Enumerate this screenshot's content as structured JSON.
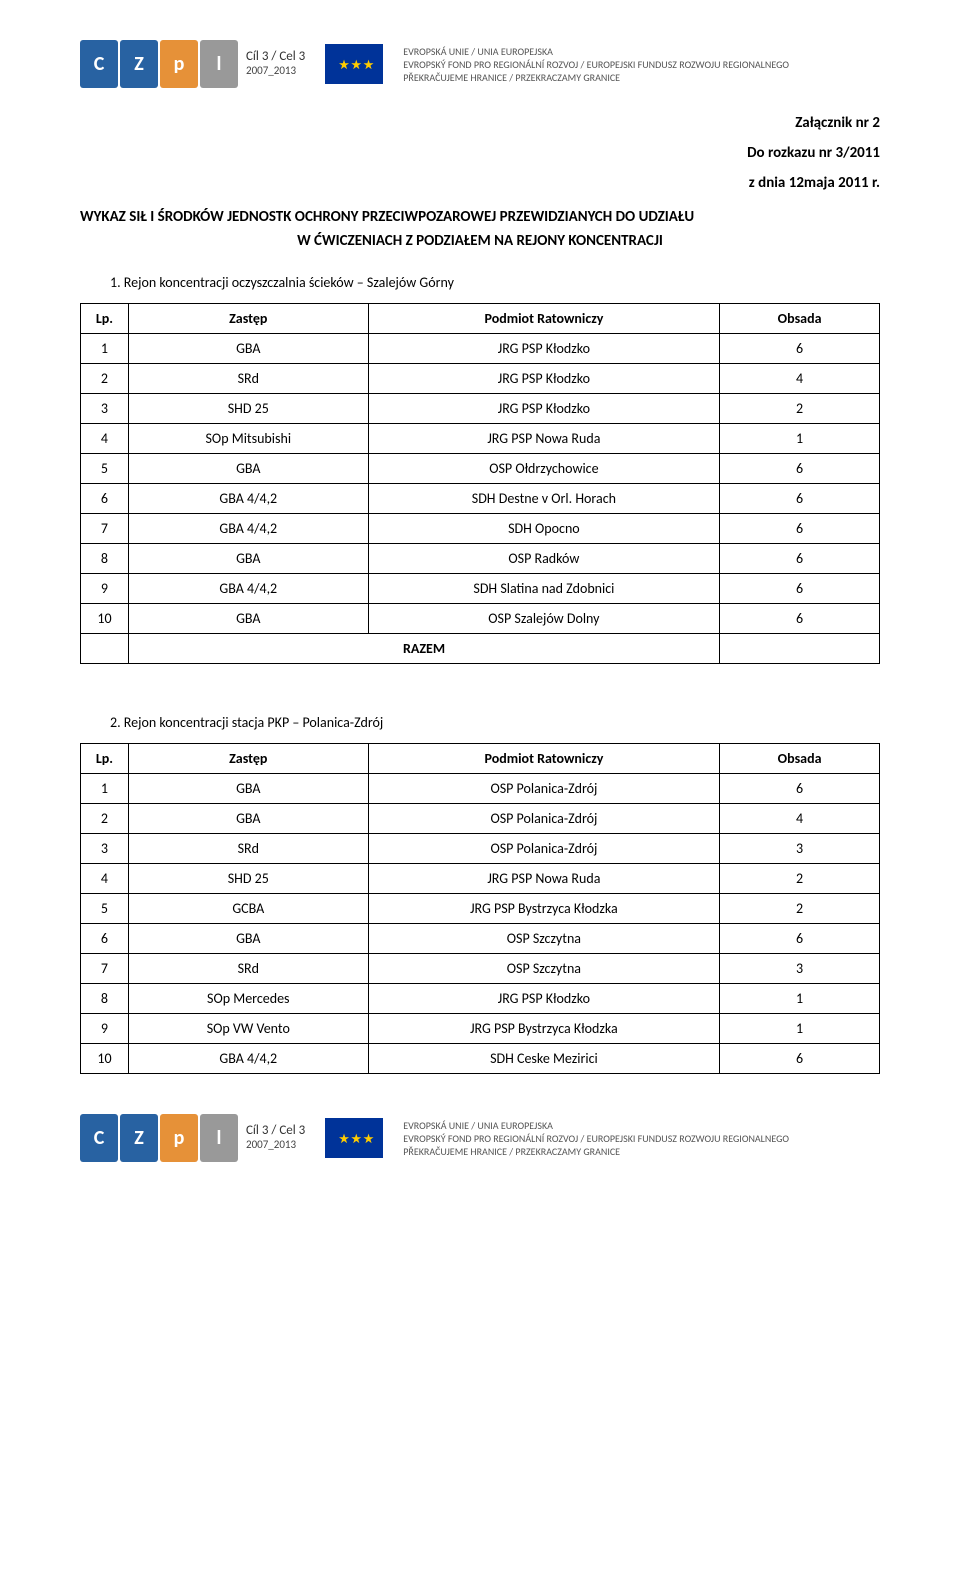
{
  "banner": {
    "logo_program": "Cíl 3 / Cel 3",
    "logo_years": "2007_2013",
    "eu_line1": "EVROPSKÁ UNIE / UNIA EUROPEJSKA",
    "eu_line2": "EVROPSKÝ FOND PRO REGIONÁLNÍ ROZVOJ / EUROPEJSKI FUNDUSZ ROZWOJU REGIONALNEGO",
    "eu_line3": "PŘEKRAČUJEME HRANICE / PRZEKRACZAMY GRANICE"
  },
  "meta": {
    "annex": "Załącznik nr 2",
    "order": "Do rozkazu nr 3/2011",
    "date": "z dnia 12maja 2011 r."
  },
  "title": {
    "line1": "WYKAZ SIŁ I ŚRODKÓW JEDNOSTK OCHRONY PRZECIWPOZAROWEJ PRZEWIDZIANYCH DO UDZIAŁU",
    "line2": "W ĆWICZENIACH Z PODZIAŁEM NA REJONY KONCENTRACJI"
  },
  "table_headers": {
    "lp": "Lp.",
    "zastep": "Zastęp",
    "podmiot": "Podmiot Ratowniczy",
    "obsada": "Obsada"
  },
  "razem_label": "RAZEM",
  "section1": {
    "heading": "1.   Rejon koncentracji oczyszczalnia ścieków – Szalejów Górny",
    "rows": [
      {
        "lp": "1",
        "z": "GBA",
        "p": "JRG PSP Kłodzko",
        "o": "6"
      },
      {
        "lp": "2",
        "z": "SRd",
        "p": "JRG PSP Kłodzko",
        "o": "4"
      },
      {
        "lp": "3",
        "z": "SHD 25",
        "p": "JRG PSP Kłodzko",
        "o": "2"
      },
      {
        "lp": "4",
        "z": "SOp Mitsubishi",
        "p": "JRG PSP Nowa Ruda",
        "o": "1"
      },
      {
        "lp": "5",
        "z": "GBA",
        "p": "OSP Ołdrzychowice",
        "o": "6"
      },
      {
        "lp": "6",
        "z": "GBA 4/4,2",
        "p": "SDH Destne v Orl. Horach",
        "o": "6"
      },
      {
        "lp": "7",
        "z": "GBA 4/4,2",
        "p": "SDH Opocno",
        "o": "6"
      },
      {
        "lp": "8",
        "z": "GBA",
        "p": "OSP Radków",
        "o": "6"
      },
      {
        "lp": "9",
        "z": "GBA 4/4,2",
        "p": "SDH Slatina nad Zdobnici",
        "o": "6"
      },
      {
        "lp": "10",
        "z": "GBA",
        "p": "OSP Szalejów Dolny",
        "o": "6"
      }
    ]
  },
  "section2": {
    "heading": "2.   Rejon koncentracji stacja PKP – Polanica-Zdrój",
    "rows": [
      {
        "lp": "1",
        "z": "GBA",
        "p": "OSP Polanica-Zdrój",
        "o": "6"
      },
      {
        "lp": "2",
        "z": "GBA",
        "p": "OSP Polanica-Zdrój",
        "o": "4"
      },
      {
        "lp": "3",
        "z": "SRd",
        "p": "OSP Polanica-Zdrój",
        "o": "3"
      },
      {
        "lp": "4",
        "z": "SHD 25",
        "p": "JRG PSP Nowa Ruda",
        "o": "2"
      },
      {
        "lp": "5",
        "z": "GCBA",
        "p": "JRG PSP Bystrzyca Kłodzka",
        "o": "2"
      },
      {
        "lp": "6",
        "z": "GBA",
        "p": "OSP Szczytna",
        "o": "6"
      },
      {
        "lp": "7",
        "z": "SRd",
        "p": "OSP Szczytna",
        "o": "3"
      },
      {
        "lp": "8",
        "z": "SOp Mercedes",
        "p": "JRG PSP Kłodzko",
        "o": "1"
      },
      {
        "lp": "9",
        "z": "SOp VW Vento",
        "p": "JRG PSP Bystrzyca Kłodzka",
        "o": "1"
      },
      {
        "lp": "10",
        "z": "GBA 4/4,2",
        "p": "SDH Ceske Mezirici",
        "o": "6"
      }
    ]
  },
  "colors": {
    "text": "#000000",
    "border": "#000000",
    "eu_flag_bg": "#003399",
    "eu_stars": "#ffcc00",
    "logo_blue": "#2862a2",
    "logo_orange": "#e69138",
    "logo_grey": "#999999"
  }
}
